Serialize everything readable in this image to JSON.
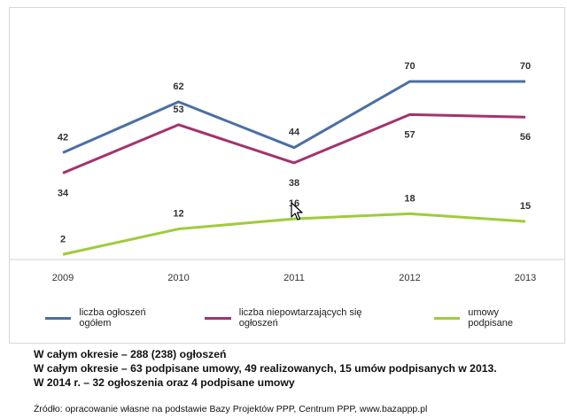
{
  "chart_data": {
    "type": "line",
    "categories": [
      "2009",
      "2010",
      "2011",
      "2012",
      "2013"
    ],
    "series": [
      {
        "name": "liczba ogłoszeń ogółem",
        "color": "#4a6fa5",
        "values": [
          42,
          62,
          44,
          70,
          70
        ]
      },
      {
        "name": "liczba niepowtarzających się ogłoszeń",
        "color": "#a3336e",
        "values": [
          34,
          53,
          38,
          57,
          56
        ]
      },
      {
        "name": "umowy podpisane",
        "color": "#9fcc3b",
        "values": [
          2,
          12,
          16,
          18,
          15
        ]
      }
    ],
    "ylim": [
      0,
      85
    ],
    "grid": false,
    "legend": "bottom"
  },
  "notes": [
    "W całym okresie – 288 (238) ogłoszeń",
    "W całym okresie – 63 podpisane umowy, 49 realizowanych, 15 umów podpisanych w 2013.",
    "W 2014 r. – 32 ogłoszenia oraz 4 podpisane umowy"
  ],
  "source": "Źródło: opracowanie własne na podstawie Bazy Projektów PPP, Centrum PPP, www.bazappp.pl",
  "cursor_icon": "arrow-cursor-icon"
}
